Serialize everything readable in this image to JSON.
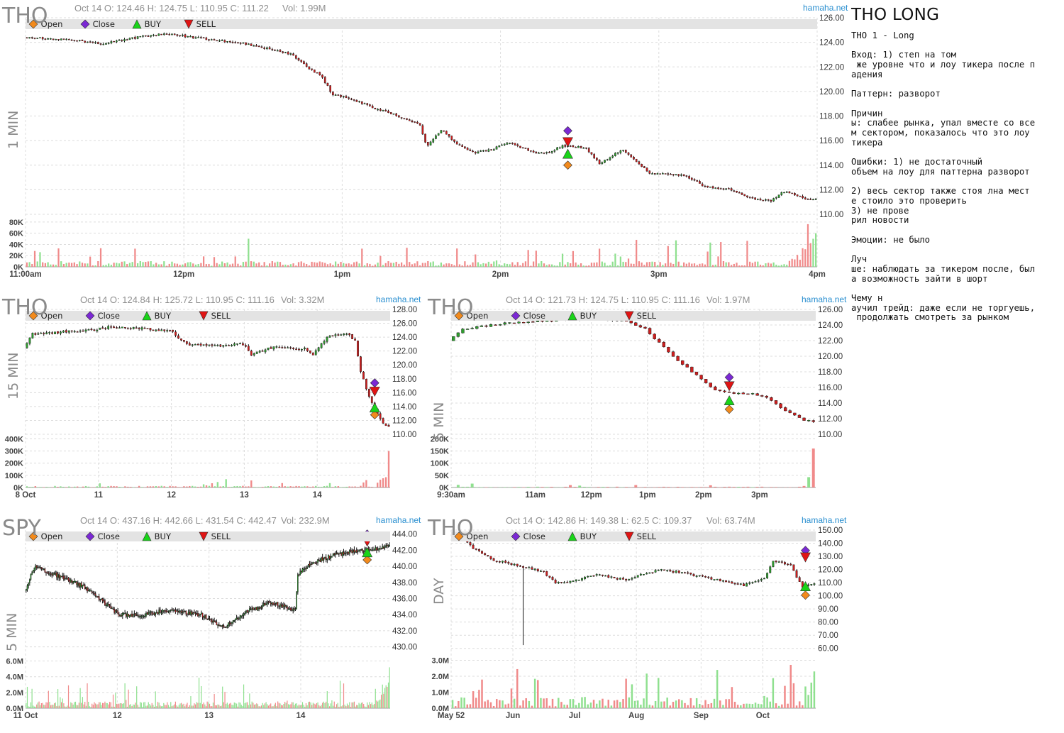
{
  "notes": {
    "title": "THO LONG",
    "lines": [
      "THO 1 - Long",
      "",
      "Вход: 1) степ на том",
      " же уровне что и лоу тикера после п",
      "адения",
      "",
      "Паттерн: разворот",
      "",
      "Причин",
      "ы: слабее рынка, упал вместе со все",
      "м сектором, показалось что это лоу",
      "тикера",
      "",
      "Ошибки: 1) не достаточный",
      "объем на лоу для паттерна разворот",
      "",
      "2) весь сектор также стоя лна мест",
      "е стоило это проверить",
      "3) не прове",
      "рил новости",
      "",
      "Эмоции: не было",
      "",
      "Луч",
      "ше: наблюдать за тикером после, был",
      "а возможность зайти в шорт",
      "",
      "Чему н",
      "аучил трейд: даже если не торгуешь,",
      " продолжать смотреть за рынком"
    ]
  },
  "legend": {
    "open": "Open",
    "close": "Close",
    "buy": "BUY",
    "sell": "SELL"
  },
  "site": "hamaha.net",
  "colors": {
    "up": "#2e9e2e",
    "down": "#cc1f1f",
    "upvol": "#8fe08f",
    "downvol": "#f08a8a",
    "open_marker": "#f28a1c",
    "close_marker": "#7b28d4",
    "buy_marker": "#19d419",
    "sell_marker": "#e01414",
    "grid": "#dcdcdc"
  },
  "chart_data": [
    {
      "id": "p1",
      "type": "candlestick",
      "symbol": "THO",
      "timeframe": "1 MIN",
      "header": "Oct 14 O: 124.46 H: 124.75 L: 110.95 C: 111.22",
      "vol": "Vol: 1.99M",
      "ylim": [
        110,
        126
      ],
      "yticks": [
        110,
        112,
        114,
        116,
        118,
        120,
        122,
        124,
        126
      ],
      "ydec": 2,
      "vol_ticks": [
        [
          0,
          "0K"
        ],
        [
          20000,
          "20K"
        ],
        [
          40000,
          "40K"
        ],
        [
          60000,
          "60K"
        ],
        [
          80000,
          "80K"
        ]
      ],
      "vmax": 90000,
      "xticks": [
        [
          0,
          "11:00am"
        ],
        [
          60,
          "12pm"
        ],
        [
          120,
          "1pm"
        ],
        [
          180,
          "2pm"
        ],
        [
          240,
          "3pm"
        ],
        [
          300,
          "4pm"
        ]
      ],
      "n": 300,
      "price_path": [
        [
          0,
          124.4
        ],
        [
          20,
          124.2
        ],
        [
          35,
          123.9
        ],
        [
          55,
          124.5
        ],
        [
          65,
          124.7
        ],
        [
          90,
          124.1
        ],
        [
          100,
          123.9
        ],
        [
          115,
          123.3
        ],
        [
          122,
          123.0
        ],
        [
          130,
          121.8
        ],
        [
          135,
          121.3
        ],
        [
          140,
          119.8
        ],
        [
          150,
          119.3
        ],
        [
          160,
          118.6
        ],
        [
          170,
          118.0
        ],
        [
          180,
          117.3
        ],
        [
          183,
          115.5
        ],
        [
          190,
          116.9
        ],
        [
          196,
          115.8
        ],
        [
          205,
          115.0
        ],
        [
          213,
          115.3
        ],
        [
          220,
          115.9
        ],
        [
          232,
          115.0
        ],
        [
          238,
          115.0
        ],
        [
          245,
          115.6
        ],
        [
          255,
          115.4
        ],
        [
          262,
          114.1
        ],
        [
          272,
          115.3
        ],
        [
          285,
          113.3
        ],
        [
          300,
          113.2
        ],
        [
          310,
          112.2
        ],
        [
          320,
          112.1
        ],
        [
          330,
          111.3
        ],
        [
          340,
          111.1
        ],
        [
          345,
          111.9
        ],
        [
          355,
          111.3
        ],
        [
          360,
          111.2
        ]
      ],
      "path_span": 360,
      "noise": 0.15,
      "seed": 11,
      "vol_base": 6000,
      "vol_spike": 60000,
      "markers": {
        "x": 205,
        "open": 114.0,
        "buy": 114.9,
        "sell": 115.9,
        "close": 116.8
      }
    },
    {
      "id": "p2",
      "type": "candlestick",
      "symbol": "THO",
      "timeframe": "15 MIN",
      "header": "Oct 14 O: 124.84 H: 125.72 L: 110.95 C: 111.16",
      "vol": "Vol: 3.32M",
      "ylim": [
        110,
        128
      ],
      "yticks": [
        110,
        112,
        114,
        116,
        118,
        120,
        122,
        124,
        126,
        128
      ],
      "ydec": 2,
      "vol_ticks": [
        [
          0,
          "0K"
        ],
        [
          100000,
          "100K"
        ],
        [
          200000,
          "200K"
        ],
        [
          300000,
          "300K"
        ],
        [
          400000,
          "400K"
        ]
      ],
      "vmax": 420000,
      "xticks": [
        [
          0,
          "8 Oct"
        ],
        [
          26,
          "11"
        ],
        [
          52,
          "12"
        ],
        [
          78,
          "13"
        ],
        [
          104,
          "14"
        ]
      ],
      "n": 130,
      "price_path": [
        [
          0,
          122.5
        ],
        [
          3,
          124.5
        ],
        [
          25,
          125.0
        ],
        [
          30,
          125.5
        ],
        [
          52,
          125.0
        ],
        [
          58,
          123.0
        ],
        [
          70,
          122.8
        ],
        [
          78,
          123.0
        ],
        [
          81,
          121.5
        ],
        [
          88,
          122.5
        ],
        [
          100,
          122.3
        ],
        [
          103,
          121.5
        ],
        [
          108,
          124.0
        ],
        [
          115,
          124.5
        ],
        [
          118,
          123.5
        ],
        [
          120,
          119.0
        ],
        [
          123,
          115.5
        ],
        [
          126,
          113.0
        ],
        [
          128,
          111.5
        ],
        [
          130,
          111.0
        ]
      ],
      "path_span": 130,
      "noise": 0.35,
      "seed": 23,
      "vol_base": 8000,
      "vol_spike": 300000,
      "markers": {
        "x": 124,
        "open": 112.8,
        "buy": 113.8,
        "sell": 116.2,
        "close": 117.4
      }
    },
    {
      "id": "p3",
      "type": "candlestick",
      "symbol": "THO",
      "timeframe": "5 MIN",
      "header": "Oct 14 O: 121.73 H: 124.75 L: 110.95 C: 111.16",
      "vol": "Vol: 1.97M",
      "ylim": [
        110,
        126
      ],
      "yticks": [
        110,
        112,
        114,
        116,
        118,
        120,
        122,
        124,
        126
      ],
      "ydec": 2,
      "vol_ticks": [
        [
          0,
          "0K"
        ],
        [
          50000,
          "50K"
        ],
        [
          100000,
          "100K"
        ],
        [
          150000,
          "150K"
        ],
        [
          200000,
          "200K"
        ]
      ],
      "vmax": 210000,
      "xticks": [
        [
          0,
          "9:30am"
        ],
        [
          18,
          "11am"
        ],
        [
          30,
          "12pm"
        ],
        [
          42,
          "1pm"
        ],
        [
          54,
          "2pm"
        ],
        [
          66,
          "3pm"
        ]
      ],
      "n": 78,
      "price_path": [
        [
          0,
          122.0
        ],
        [
          3,
          123.5
        ],
        [
          12,
          124.2
        ],
        [
          20,
          124.5
        ],
        [
          30,
          124.8
        ],
        [
          38,
          124.5
        ],
        [
          42,
          123.5
        ],
        [
          47,
          120.5
        ],
        [
          52,
          118.0
        ],
        [
          57,
          115.6
        ],
        [
          60,
          115.3
        ],
        [
          65,
          115.2
        ],
        [
          68,
          114.7
        ],
        [
          72,
          113.0
        ],
        [
          76,
          111.8
        ],
        [
          82,
          111.5
        ],
        [
          88,
          111.3
        ]
      ],
      "path_span": 78,
      "noise": 0.2,
      "seed": 37,
      "vol_base": 2000,
      "vol_spike": 160000,
      "markers": {
        "x": 59,
        "open": 113.2,
        "buy": 114.3,
        "sell": 116.2,
        "close": 117.3
      }
    },
    {
      "id": "p4",
      "type": "candlestick",
      "symbol": "SPY",
      "timeframe": "5 MIN",
      "header": "Oct 14 O: 437.16 H: 442.66 L: 431.54 C: 442.47",
      "vol": "Vol: 232.9M",
      "ylim": [
        429,
        444.5
      ],
      "yticks": [
        430,
        432,
        434,
        436,
        438,
        440,
        442,
        444
      ],
      "ydec": 2,
      "vol_ticks": [
        [
          0,
          "0.0M"
        ],
        [
          2000000,
          "2.0M"
        ],
        [
          4000000,
          "4.0M"
        ],
        [
          6000000,
          "6.0M"
        ]
      ],
      "vmax": 6500000,
      "xticks": [
        [
          0,
          "11 Oct"
        ],
        [
          78,
          "12"
        ],
        [
          156,
          "13"
        ],
        [
          234,
          "14"
        ]
      ],
      "n": 310,
      "price_path": [
        [
          0,
          437.0
        ],
        [
          8,
          440.0
        ],
        [
          25,
          439.0
        ],
        [
          50,
          437.5
        ],
        [
          80,
          434.0
        ],
        [
          100,
          434.0
        ],
        [
          120,
          434.5
        ],
        [
          150,
          434.0
        ],
        [
          162,
          433.0
        ],
        [
          170,
          432.5
        ],
        [
          190,
          434.5
        ],
        [
          210,
          435.5
        ],
        [
          230,
          434.5
        ],
        [
          232,
          439.0
        ],
        [
          245,
          440.5
        ],
        [
          265,
          441.5
        ],
        [
          290,
          442.0
        ],
        [
          310,
          442.5
        ]
      ],
      "path_span": 310,
      "noise": 0.5,
      "seed": 53,
      "vol_base": 500000,
      "vol_spike": 5200000,
      "markers": {
        "x": 290,
        "open": 440.8,
        "buy": 441.7,
        "sell": 443.1,
        "close": 444.0
      }
    },
    {
      "id": "p5",
      "type": "candlestick",
      "symbol": "THO",
      "timeframe": "DAY",
      "header": "Oct 14 O: 142.86 H: 149.38 L: 62.5 C: 109.37",
      "vol": "Vol: 63.74M",
      "ylim": [
        55,
        150
      ],
      "yticks": [
        60,
        70,
        80,
        90,
        100,
        110,
        120,
        130,
        140,
        150
      ],
      "ydec": 2,
      "vol_ticks": [
        [
          0,
          "0.0M"
        ],
        [
          1000000,
          "1.0M"
        ],
        [
          2000000,
          "2.0M"
        ],
        [
          3000000,
          "3.0M"
        ]
      ],
      "vmax": 3200000,
      "xticks": [
        [
          0,
          "May 52"
        ],
        [
          21,
          "Jun"
        ],
        [
          42,
          "Jul"
        ],
        [
          63,
          "Aug"
        ],
        [
          85,
          "Sep"
        ],
        [
          106,
          "Oct"
        ]
      ],
      "n": 124,
      "price_path": [
        [
          0,
          143.0
        ],
        [
          5,
          144.0
        ],
        [
          8,
          136.0
        ],
        [
          15,
          127.0
        ],
        [
          20,
          125.0
        ],
        [
          25,
          122.0
        ],
        [
          32,
          118.0
        ],
        [
          36,
          110.0
        ],
        [
          40,
          110.5
        ],
        [
          50,
          116.0
        ],
        [
          60,
          112.0
        ],
        [
          65,
          116.0
        ],
        [
          72,
          120.0
        ],
        [
          85,
          115.0
        ],
        [
          100,
          108.0
        ],
        [
          107,
          113.0
        ],
        [
          110,
          126.0
        ],
        [
          116,
          124.0
        ],
        [
          118,
          114.0
        ],
        [
          120,
          107.0
        ],
        [
          124,
          109.0
        ]
      ],
      "path_span": 124,
      "noise": 1.5,
      "seed": 71,
      "vol_base": 400000,
      "vol_spike": 2300000,
      "long_wick": {
        "x": 24,
        "low": 62.5
      },
      "markers": {
        "x": 120,
        "open": 100.5,
        "buy": 107.0,
        "sell": 129.5,
        "close": 134.5
      }
    }
  ]
}
